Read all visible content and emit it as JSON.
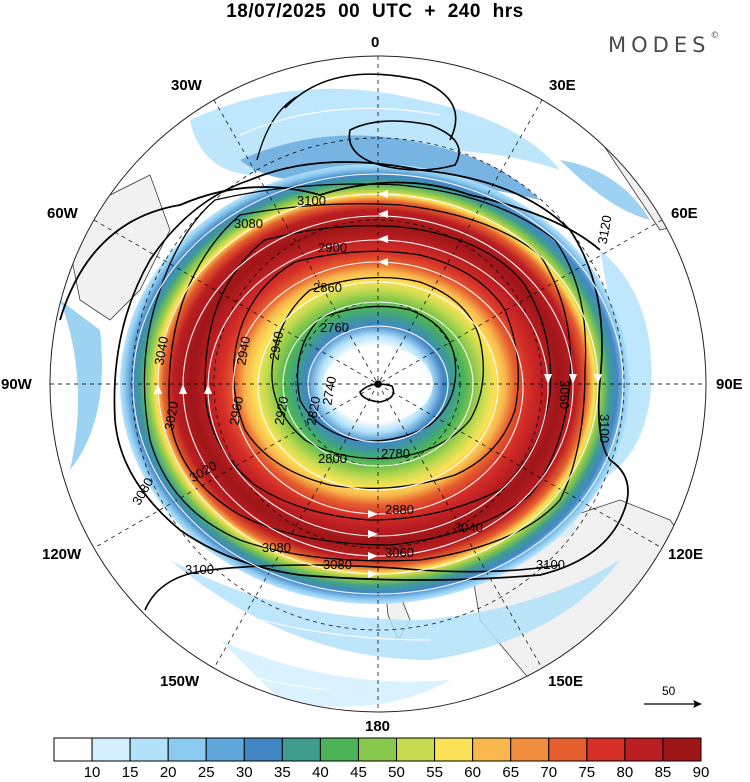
{
  "header": {
    "title": "18/07/2025  00 UTC  + 240 hrs",
    "brand": "MODES",
    "brand_mark": "©"
  },
  "longitude_labels": {
    "top": "0",
    "bottom": "180",
    "upper_left": "30W",
    "upper_right": "30E",
    "mid_upper_left": "60W",
    "mid_upper_right": "60E",
    "left": "90W",
    "right": "90E",
    "mid_lower_left": "120W",
    "mid_lower_right": "120E",
    "lower_left": "150W",
    "lower_right": "150E"
  },
  "contour_labels": [
    "3100",
    "3080",
    "3120",
    "3060",
    "3040",
    "3020",
    "2960",
    "2940",
    "2920",
    "2900",
    "2880",
    "2860",
    "2840",
    "2820",
    "2800",
    "2780",
    "2760",
    "2740"
  ],
  "reference_vector": {
    "label": "50"
  },
  "colorbar": {
    "colors": [
      "#ffffff",
      "#d4efff",
      "#b3e2fb",
      "#8ccbf0",
      "#61a8dd",
      "#4286c6",
      "#3f9d8f",
      "#4cb458",
      "#88c84a",
      "#c6db50",
      "#fde257",
      "#f9b74c",
      "#f28d3e",
      "#e6602f",
      "#d63028",
      "#bb1e22",
      "#9f1618"
    ],
    "tick_labels": [
      "10",
      "15",
      "20",
      "25",
      "30",
      "35",
      "40",
      "45",
      "50",
      "55",
      "60",
      "65",
      "70",
      "75",
      "80",
      "85",
      "90"
    ]
  },
  "colors": {
    "land": "#f1f1f1",
    "coast": "#3a3a3a",
    "contour": "#000000",
    "arrows": "#ffffff"
  }
}
